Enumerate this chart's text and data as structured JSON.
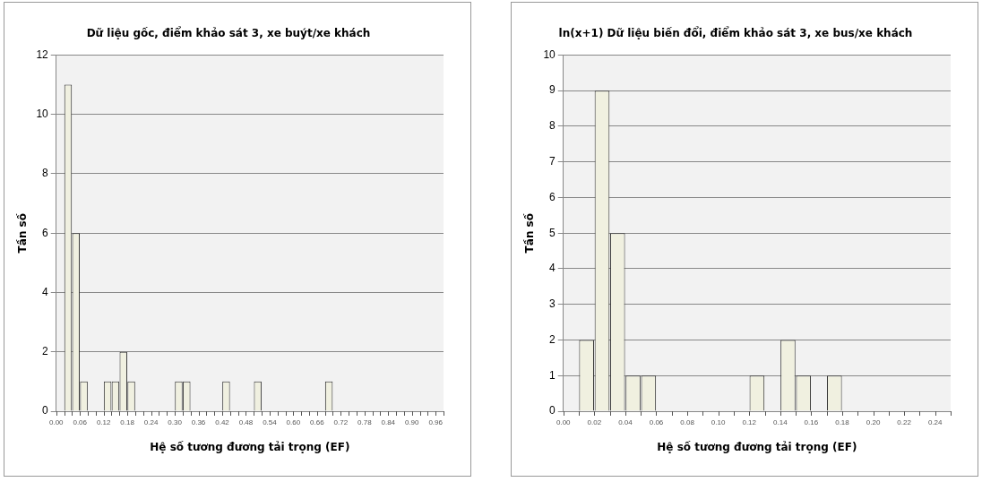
{
  "chart_data": [
    {
      "type": "histogram",
      "title": "Dữ liệu gốc, điểm khảo sát 3, xe buýt/xe khách",
      "xlabel": "Hệ số tương đương tải trọng (EF)",
      "ylabel": "Tần số",
      "bins": [
        0,
        0.02,
        0.04,
        0.06,
        0.08,
        0.1,
        0.12,
        0.14,
        0.16,
        0.18,
        0.2,
        0.22,
        0.24,
        0.26,
        0.28,
        0.3,
        0.32,
        0.34,
        0.36,
        0.38,
        0.4,
        0.42,
        0.44,
        0.46,
        0.48,
        0.5,
        0.52,
        0.54,
        0.56,
        0.58,
        0.6,
        0.62,
        0.64,
        0.66,
        0.68,
        0.7,
        0.72,
        0.74,
        0.76,
        0.78,
        0.8,
        0.82,
        0.84,
        0.86,
        0.88,
        0.9,
        0.92,
        0.94,
        0.96,
        0.98
      ],
      "values": [
        0,
        11,
        6,
        1,
        0,
        0,
        1,
        1,
        2,
        1,
        0,
        0,
        0,
        0,
        0,
        1,
        1,
        0,
        0,
        0,
        0,
        1,
        0,
        0,
        0,
        1,
        0,
        0,
        0,
        0,
        0,
        0,
        0,
        0,
        1,
        0,
        0,
        0,
        0,
        0,
        0,
        0,
        0,
        0,
        0,
        0,
        0,
        0,
        0
      ],
      "color": "#f0f0e0",
      "xlim": [
        0,
        0.98
      ],
      "xticks": [
        {
          "value": 0,
          "label": "0.00"
        },
        {
          "value": 0.02,
          "label": null
        },
        {
          "value": 0.04,
          "label": null
        },
        {
          "value": 0.06,
          "label": "0.06"
        },
        {
          "value": 0.08,
          "label": null
        },
        {
          "value": 0.1,
          "label": null
        },
        {
          "value": 0.12,
          "label": "0.12"
        },
        {
          "value": 0.14,
          "label": null
        },
        {
          "value": 0.16,
          "label": null
        },
        {
          "value": 0.18,
          "label": "0.18"
        },
        {
          "value": 0.2,
          "label": null
        },
        {
          "value": 0.22,
          "label": null
        },
        {
          "value": 0.24,
          "label": "0.24"
        },
        {
          "value": 0.26,
          "label": null
        },
        {
          "value": 0.28,
          "label": null
        },
        {
          "value": 0.3,
          "label": "0.30"
        },
        {
          "value": 0.32,
          "label": null
        },
        {
          "value": 0.34,
          "label": null
        },
        {
          "value": 0.36,
          "label": "0.36"
        },
        {
          "value": 0.38,
          "label": null
        },
        {
          "value": 0.4,
          "label": null
        },
        {
          "value": 0.42,
          "label": "0.42"
        },
        {
          "value": 0.44,
          "label": null
        },
        {
          "value": 0.46,
          "label": null
        },
        {
          "value": 0.48,
          "label": "0.48"
        },
        {
          "value": 0.5,
          "label": null
        },
        {
          "value": 0.52,
          "label": null
        },
        {
          "value": 0.54,
          "label": "0.54"
        },
        {
          "value": 0.56,
          "label": null
        },
        {
          "value": 0.58,
          "label": null
        },
        {
          "value": 0.6,
          "label": "0.60"
        },
        {
          "value": 0.62,
          "label": null
        },
        {
          "value": 0.64,
          "label": null
        },
        {
          "value": 0.66,
          "label": "0.66"
        },
        {
          "value": 0.68,
          "label": null
        },
        {
          "value": 0.7,
          "label": null
        },
        {
          "value": 0.72,
          "label": "0.72"
        },
        {
          "value": 0.74,
          "label": null
        },
        {
          "value": 0.76,
          "label": null
        },
        {
          "value": 0.78,
          "label": "0.78"
        },
        {
          "value": 0.8,
          "label": null
        },
        {
          "value": 0.82,
          "label": null
        },
        {
          "value": 0.84,
          "label": "0.84"
        },
        {
          "value": 0.86,
          "label": null
        },
        {
          "value": 0.88,
          "label": null
        },
        {
          "value": 0.9,
          "label": "0.90"
        },
        {
          "value": 0.92,
          "label": null
        },
        {
          "value": 0.94,
          "label": null
        },
        {
          "value": 0.96,
          "label": "0.96"
        },
        {
          "value": 0.98,
          "label": null
        }
      ],
      "ylim": [
        0,
        12
      ],
      "yticks": [
        0,
        2,
        4,
        6,
        8,
        10,
        12
      ],
      "grid": "y",
      "legend": false
    },
    {
      "type": "histogram",
      "title": "ln(x+1) Dữ liệu biến đổi, điểm khảo sát 3, xe bus/xe khách",
      "xlabel": "Hệ số tương đương tải trọng (EF)",
      "ylabel": "Tần số",
      "bins": [
        0,
        0.01,
        0.02,
        0.03,
        0.04,
        0.05,
        0.06,
        0.07,
        0.08,
        0.09,
        0.1,
        0.11,
        0.12,
        0.13,
        0.14,
        0.15,
        0.16,
        0.17,
        0.18,
        0.19,
        0.2,
        0.21,
        0.22,
        0.23,
        0.24,
        0.25
      ],
      "values": [
        0,
        2,
        9,
        5,
        1,
        1,
        0,
        0,
        0,
        0,
        0,
        0,
        1,
        0,
        2,
        1,
        0,
        1,
        0,
        0,
        0,
        0,
        0,
        0,
        0
      ],
      "color": "#f0f0e0",
      "xlim": [
        0,
        0.25
      ],
      "xticks": [
        {
          "value": 0,
          "label": "0.00"
        },
        {
          "value": 0.01,
          "label": null
        },
        {
          "value": 0.02,
          "label": "0.02"
        },
        {
          "value": 0.03,
          "label": null
        },
        {
          "value": 0.04,
          "label": "0.04"
        },
        {
          "value": 0.05,
          "label": null
        },
        {
          "value": 0.06,
          "label": "0.06"
        },
        {
          "value": 0.07,
          "label": null
        },
        {
          "value": 0.08,
          "label": "0.08"
        },
        {
          "value": 0.09,
          "label": null
        },
        {
          "value": 0.1,
          "label": "0.10"
        },
        {
          "value": 0.11,
          "label": null
        },
        {
          "value": 0.12,
          "label": "0.12"
        },
        {
          "value": 0.13,
          "label": null
        },
        {
          "value": 0.14,
          "label": "0.14"
        },
        {
          "value": 0.15,
          "label": null
        },
        {
          "value": 0.16,
          "label": "0.16"
        },
        {
          "value": 0.17,
          "label": null
        },
        {
          "value": 0.18,
          "label": "0.18"
        },
        {
          "value": 0.19,
          "label": null
        },
        {
          "value": 0.2,
          "label": "0.20"
        },
        {
          "value": 0.21,
          "label": null
        },
        {
          "value": 0.22,
          "label": "0.22"
        },
        {
          "value": 0.23,
          "label": null
        },
        {
          "value": 0.24,
          "label": "0.24"
        },
        {
          "value": 0.25,
          "label": null
        }
      ],
      "ylim": [
        0,
        10
      ],
      "yticks": [
        0,
        1,
        2,
        3,
        4,
        5,
        6,
        7,
        8,
        9,
        10
      ],
      "grid": "y",
      "legend": false
    }
  ]
}
